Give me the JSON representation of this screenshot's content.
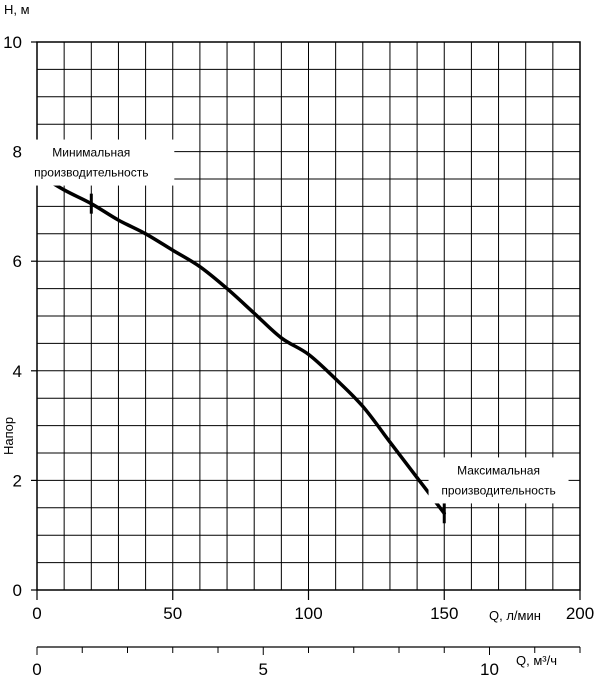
{
  "chart_data": {
    "type": "line",
    "ylabel": "Напор",
    "y_unit_label": "H, м",
    "x_unit_label": "Q, л/мин",
    "x2_unit_label": "Q, м³/ч",
    "xlim": [
      0,
      200
    ],
    "ylim": [
      0,
      10
    ],
    "x_ticks": [
      "0",
      "50",
      "100",
      "150",
      "200"
    ],
    "y_ticks": [
      "0",
      "2",
      "4",
      "6",
      "8",
      "10"
    ],
    "x2_ticks": [
      "0",
      "5",
      "10"
    ],
    "x2_tick_values": [
      0,
      5,
      10
    ],
    "x2_lim": [
      0,
      12
    ],
    "grid": true,
    "series": [
      {
        "x": [
          0,
          10,
          20,
          30,
          40,
          50,
          60,
          70,
          80,
          90,
          100,
          110,
          120,
          130,
          140,
          150
        ],
        "y": [
          7.6,
          7.3,
          7.05,
          6.75,
          6.5,
          6.2,
          5.9,
          5.5,
          5.05,
          4.6,
          4.3,
          3.85,
          3.35,
          2.7,
          2.05,
          1.4
        ]
      }
    ],
    "markers": [
      {
        "x": 20,
        "y": 7.05
      },
      {
        "x": 150,
        "y": 1.4
      }
    ],
    "annotations": [
      {
        "lines": [
          "Минимальная",
          "производительность"
        ],
        "x": 20,
        "y": 7.8
      },
      {
        "lines": [
          "Максимальная",
          "производительность"
        ],
        "x": 170,
        "y": 2.0
      }
    ]
  }
}
